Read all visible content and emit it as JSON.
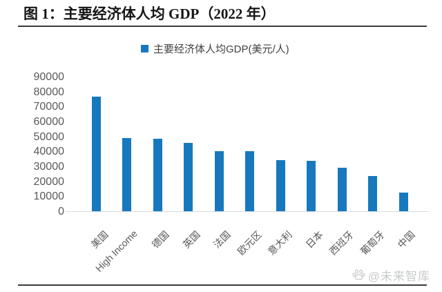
{
  "figure": {
    "title": "图 1：主要经济体人均 GDP（2022 年）",
    "watermark_text": "@未来智库"
  },
  "chart_data": {
    "type": "bar",
    "title": "主要经济体人均GDP(美元/人)",
    "legend": [
      "主要经济体人均GDP(美元/人)"
    ],
    "legend_position": "top-center",
    "categories": [
      "美国",
      "High Income",
      "德国",
      "英国",
      "法国",
      "欧元区",
      "意大利",
      "日本",
      "西班牙",
      "葡萄牙",
      "中国"
    ],
    "series": [
      {
        "name": "主要经济体人均GDP(美元/人)",
        "values": [
          76400,
          48800,
          48400,
          45900,
          40300,
          40100,
          34300,
          33600,
          29000,
          23500,
          12300
        ]
      }
    ],
    "xlabel": "",
    "ylabel": "",
    "ylim": [
      0,
      90000
    ],
    "yticks": [
      0,
      10000,
      20000,
      30000,
      40000,
      50000,
      60000,
      70000,
      80000,
      90000
    ],
    "grid": false,
    "bar_color": "#1778BE",
    "axis_label_color": "#595959"
  }
}
